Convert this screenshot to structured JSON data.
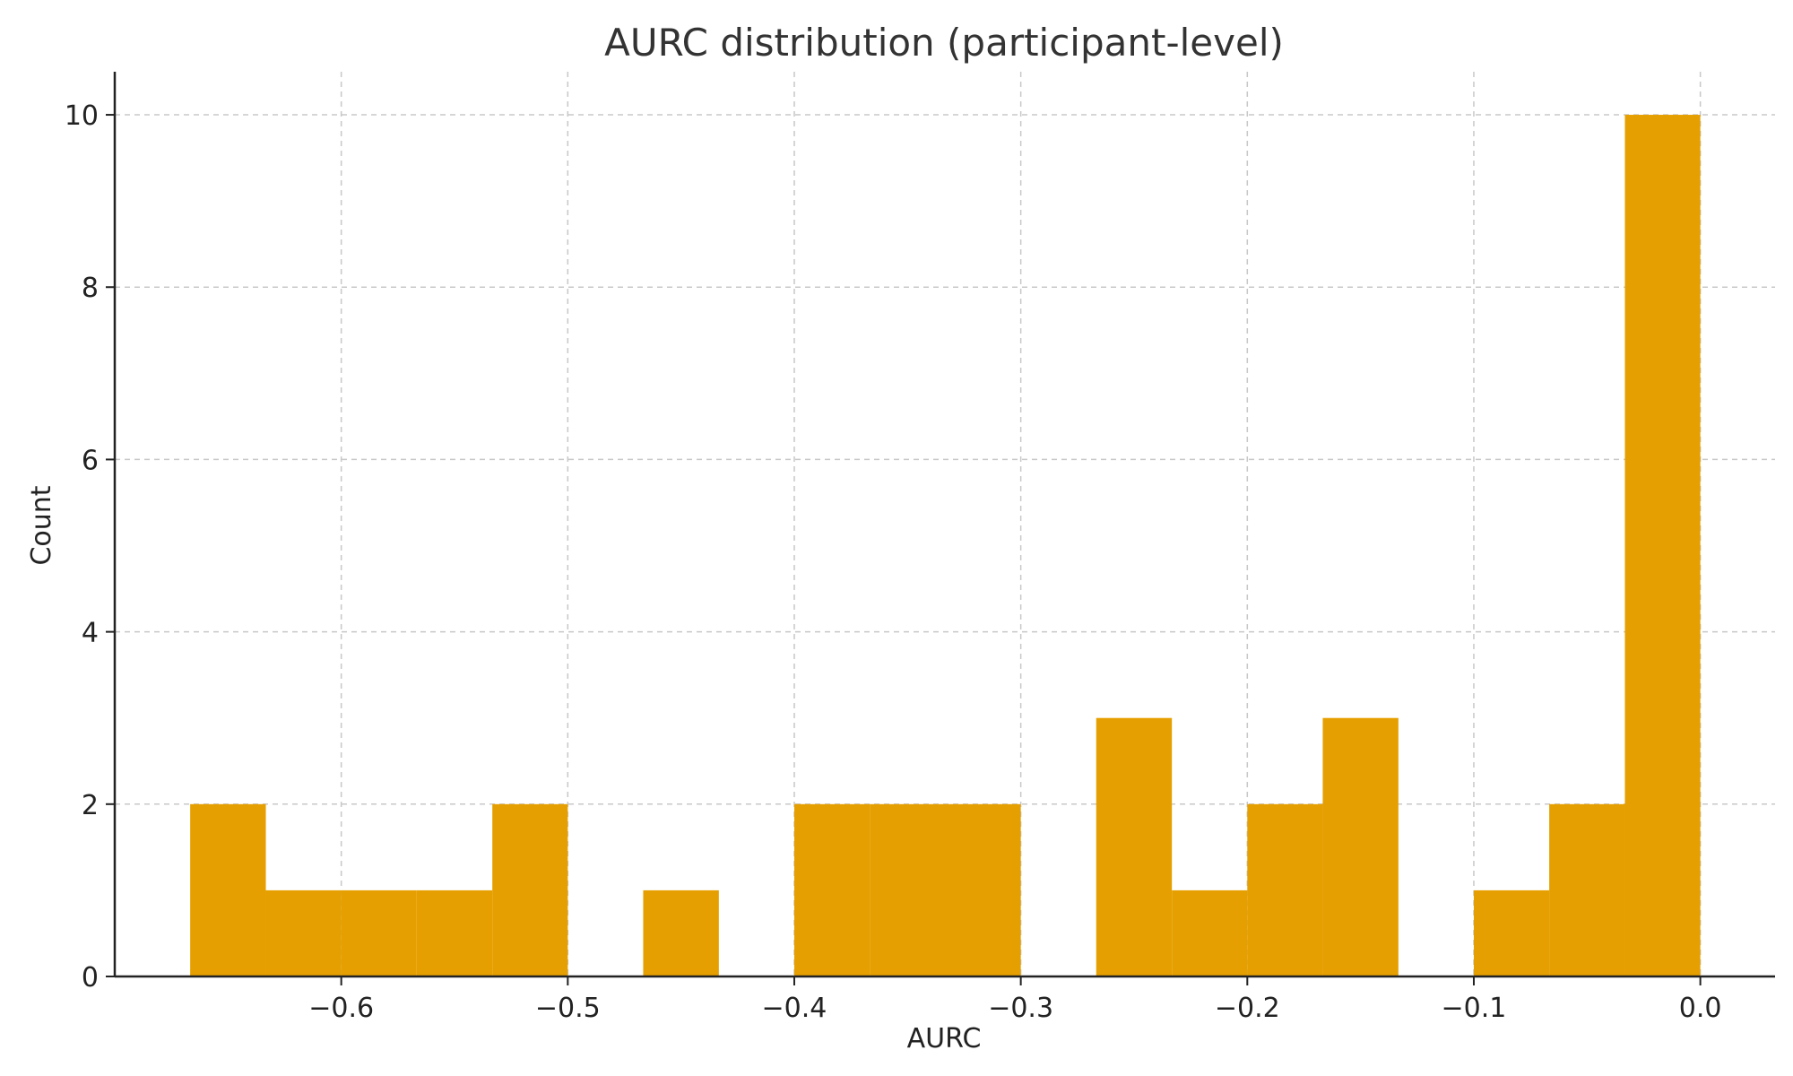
{
  "chart_data": {
    "type": "bar",
    "title": "AURC distribution (participant-level)",
    "xlabel": "AURC",
    "ylabel": "Count",
    "xlim": [
      -0.7,
      0.033
    ],
    "ylim": [
      0,
      10.5
    ],
    "xticks": [
      -0.6,
      -0.5,
      -0.4,
      -0.3,
      -0.2,
      -0.1,
      0.0
    ],
    "xtick_labels": [
      "−0.6",
      "−0.5",
      "−0.4",
      "−0.3",
      "−0.2",
      "−0.1",
      "0.0"
    ],
    "yticks": [
      0,
      2,
      4,
      6,
      8,
      10
    ],
    "ytick_labels": [
      "0",
      "2",
      "4",
      "6",
      "8",
      "10"
    ],
    "grid": true,
    "bar_color": "#E69F00",
    "bins": [
      {
        "x0": -0.6667,
        "x1": -0.6333,
        "count": 2
      },
      {
        "x0": -0.6333,
        "x1": -0.6,
        "count": 1
      },
      {
        "x0": -0.6,
        "x1": -0.5667,
        "count": 1
      },
      {
        "x0": -0.5667,
        "x1": -0.5333,
        "count": 1
      },
      {
        "x0": -0.5333,
        "x1": -0.5,
        "count": 2
      },
      {
        "x0": -0.5,
        "x1": -0.4667,
        "count": 0
      },
      {
        "x0": -0.4667,
        "x1": -0.4333,
        "count": 1
      },
      {
        "x0": -0.4333,
        "x1": -0.4,
        "count": 0
      },
      {
        "x0": -0.4,
        "x1": -0.3667,
        "count": 2
      },
      {
        "x0": -0.3667,
        "x1": -0.3333,
        "count": 2
      },
      {
        "x0": -0.3333,
        "x1": -0.3,
        "count": 2
      },
      {
        "x0": -0.3,
        "x1": -0.2667,
        "count": 0
      },
      {
        "x0": -0.2667,
        "x1": -0.2333,
        "count": 3
      },
      {
        "x0": -0.2333,
        "x1": -0.2,
        "count": 1
      },
      {
        "x0": -0.2,
        "x1": -0.1667,
        "count": 2
      },
      {
        "x0": -0.1667,
        "x1": -0.1333,
        "count": 3
      },
      {
        "x0": -0.1333,
        "x1": -0.1,
        "count": 0
      },
      {
        "x0": -0.1,
        "x1": -0.0667,
        "count": 1
      },
      {
        "x0": -0.0667,
        "x1": -0.0333,
        "count": 2
      },
      {
        "x0": -0.0333,
        "x1": 0.0,
        "count": 10
      }
    ]
  }
}
